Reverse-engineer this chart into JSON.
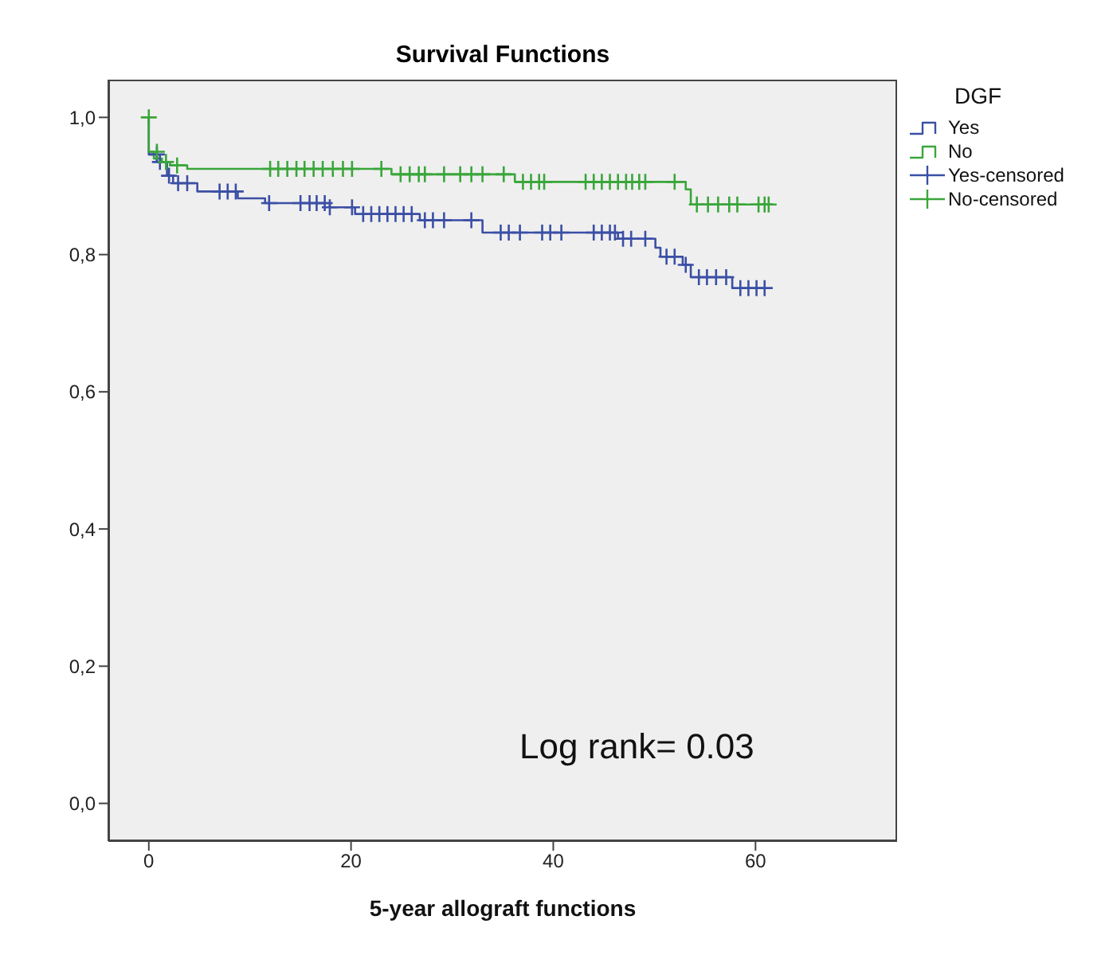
{
  "chart_data": {
    "type": "step",
    "title": "Survival Functions",
    "xlabel": "5-year   allograft functions",
    "legend_title": "DGF",
    "legend": "right",
    "grid": false,
    "xlim": [
      -4,
      74
    ],
    "xticks": [
      0,
      20,
      40,
      60
    ],
    "ylim": [
      -0.055,
      1.055
    ],
    "yticks": [
      {
        "value": 0,
        "label": "0,0"
      },
      {
        "value": 0.2,
        "label": "0,2"
      },
      {
        "value": 0.4,
        "label": "0,4"
      },
      {
        "value": 0.6,
        "label": "0,6"
      },
      {
        "value": 0.8,
        "label": "0,8"
      },
      {
        "value": 1,
        "label": "1,0"
      }
    ],
    "annotations": [
      "Log rank= 0.03"
    ],
    "series": [
      {
        "name": "Yes",
        "color": "#3b4fa5",
        "marker": "none",
        "x": [
          0,
          0,
          0.8,
          1.8,
          2.4,
          4.8,
          8.8,
          11.5,
          17.9,
          20.4,
          26.8,
          33,
          46.4,
          50.1,
          50.6,
          52.8,
          53.6,
          57.7,
          61.7
        ],
        "values": [
          1,
          0.946,
          0.935,
          0.915,
          0.904,
          0.892,
          0.882,
          0.875,
          0.869,
          0.859,
          0.85,
          0.832,
          0.823,
          0.81,
          0.797,
          0.785,
          0.767,
          0.751,
          0.751
        ]
      },
      {
        "name": "No",
        "color": "#3aa63a",
        "marker": "none",
        "x": [
          0,
          0,
          0.5,
          1.3,
          2.1,
          3.8,
          24,
          36.2,
          53.1,
          53.6,
          61.7
        ],
        "values": [
          1,
          0.95,
          0.94,
          0.935,
          0.93,
          0.925,
          0.917,
          0.906,
          0.895,
          0.873,
          0.873
        ]
      },
      {
        "name": "Yes-censored",
        "type": "scatter",
        "color": "#3b4fa5",
        "marker": "cross",
        "x": [
          0.8,
          1.1,
          2.0,
          2.9,
          3.8,
          7.0,
          7.8,
          8.6,
          11.9,
          15.0,
          15.9,
          16.6,
          17.4,
          17.9,
          20.1,
          21.2,
          22.0,
          22.8,
          23.6,
          24.4,
          25.2,
          26.0,
          27.3,
          28.1,
          29.2,
          31.9,
          34.8,
          35.6,
          36.7,
          38.9,
          39.7,
          40.8,
          44.0,
          44.8,
          45.6,
          46.1,
          46.9,
          47.7,
          49.1,
          51.2,
          52.0,
          53.1,
          54.4,
          55.2,
          56.1,
          57.1,
          58.5,
          59.3,
          60.1,
          60.9
        ],
        "values": [
          0.946,
          0.935,
          0.915,
          0.904,
          0.904,
          0.892,
          0.892,
          0.892,
          0.875,
          0.875,
          0.875,
          0.875,
          0.875,
          0.869,
          0.869,
          0.859,
          0.859,
          0.859,
          0.859,
          0.859,
          0.859,
          0.859,
          0.85,
          0.85,
          0.85,
          0.85,
          0.832,
          0.832,
          0.832,
          0.832,
          0.832,
          0.832,
          0.832,
          0.832,
          0.832,
          0.832,
          0.823,
          0.823,
          0.823,
          0.797,
          0.797,
          0.785,
          0.767,
          0.767,
          0.767,
          0.767,
          0.751,
          0.751,
          0.751,
          0.751
        ]
      },
      {
        "name": "No-censored",
        "type": "scatter",
        "color": "#3aa63a",
        "marker": "cross",
        "x": [
          0,
          0.8,
          1.7,
          2.8,
          12.0,
          12.8,
          13.7,
          14.6,
          15.4,
          16.3,
          17.2,
          18.2,
          19.2,
          20.1,
          23.0,
          24.9,
          25.8,
          26.7,
          27.3,
          29.2,
          30.8,
          31.9,
          33.0,
          35.1,
          37.0,
          37.8,
          38.6,
          39.1,
          43.2,
          44.0,
          44.8,
          45.6,
          46.4,
          47.2,
          47.8,
          48.5,
          49.1,
          52.0,
          54.2,
          55.3,
          56.3,
          57.4,
          58.2,
          60.3,
          60.9,
          61.3
        ],
        "values": [
          1,
          0.95,
          0.935,
          0.93,
          0.925,
          0.925,
          0.925,
          0.925,
          0.925,
          0.925,
          0.925,
          0.925,
          0.925,
          0.925,
          0.925,
          0.917,
          0.917,
          0.917,
          0.917,
          0.917,
          0.917,
          0.917,
          0.917,
          0.917,
          0.906,
          0.906,
          0.906,
          0.906,
          0.906,
          0.906,
          0.906,
          0.906,
          0.906,
          0.906,
          0.906,
          0.906,
          0.906,
          0.906,
          0.873,
          0.873,
          0.873,
          0.873,
          0.873,
          0.873,
          0.873,
          0.873
        ]
      }
    ]
  }
}
